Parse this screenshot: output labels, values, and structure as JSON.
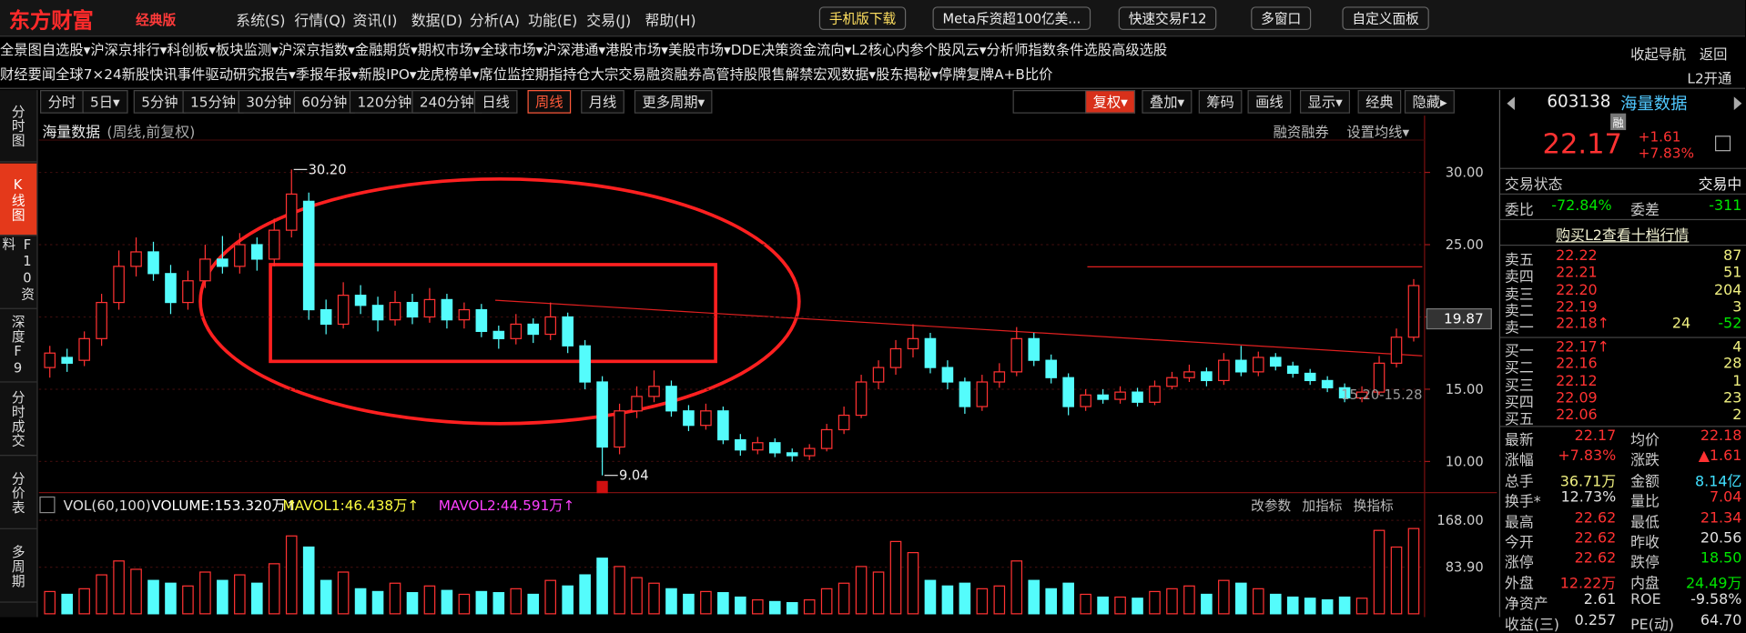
{
  "titlebar": {
    "logo": "东方财富",
    "edition": "经典版",
    "menu": [
      "系统(S)",
      "行情(Q)",
      "资讯(I)",
      "数据(D)",
      "分析(A)",
      "功能(E)",
      "交易(J)",
      "帮助(H)"
    ],
    "buttons": [
      "手机版下载",
      "Meta斥资超100亿美...",
      "快速交易F12",
      "多窗口",
      "自定义面板"
    ]
  },
  "nav": {
    "row1": [
      "全景图",
      "自选股▾",
      "沪深京排行▾",
      "科创板▾",
      "板块监测▾",
      "沪深京指数▾",
      "金融期货▾",
      "期权市场▾",
      "全球市场▾",
      "沪深港通▾",
      "港股市场▾",
      "美股市场▾",
      "DDE决策",
      "资金流向▾",
      "L2核心内参",
      "个股风云▾",
      "分析师指数",
      "条件选股",
      "高级选股"
    ],
    "row1_right": [
      "收起导航",
      "返回"
    ],
    "row2": [
      "财经要闻",
      "全球7×24",
      "新股快讯",
      "事件驱动",
      "研究报告▾",
      "季报年报▾",
      "新股IPO▾",
      "龙虎榜单▾",
      "席位监控",
      "期指持仓",
      "大宗交易",
      "融资融券",
      "高管持股",
      "限售解禁",
      "宏观数据▾",
      "股东揭秘▾",
      "停牌复牌",
      "A+B比价"
    ],
    "row2_right": "L2开通"
  },
  "sidebar": {
    "items": [
      "分时图",
      "K线图",
      "F10资料",
      "深度F9",
      "分时成交",
      "分价表",
      "多周期"
    ],
    "active": 1
  },
  "toolbar": {
    "periods": [
      "分时",
      "5日▾",
      "5分钟",
      "15分钟",
      "30分钟",
      "60分钟",
      "120分钟",
      "240分钟",
      "日线",
      "周线",
      "月线",
      "更多周期▾"
    ],
    "active": 9,
    "tools": [
      "复权▾",
      "叠加▾",
      "筹码",
      "画线",
      "显示▾",
      "经典",
      "隐藏▸"
    ]
  },
  "chart_data": {
    "type": "candlestick",
    "title": "海量数据",
    "subtitle": "(周线,前复权)",
    "links": [
      "融资融券",
      "设置均线▾"
    ],
    "up_color": "#ff3232",
    "down_color": "#54fcfc",
    "ohlc": [
      [
        16.5,
        18.0,
        15.8,
        17.5
      ],
      [
        17.2,
        17.8,
        16.2,
        16.8
      ],
      [
        17.0,
        19.0,
        16.6,
        18.5
      ],
      [
        18.5,
        21.6,
        18.0,
        21.0
      ],
      [
        21.0,
        24.6,
        20.5,
        23.5
      ],
      [
        23.5,
        25.5,
        22.8,
        24.5
      ],
      [
        24.5,
        25.2,
        22.5,
        23.0
      ],
      [
        23.0,
        23.6,
        20.2,
        21.0
      ],
      [
        21.0,
        23.2,
        20.5,
        22.5
      ],
      [
        22.5,
        25.0,
        22.0,
        24.0
      ],
      [
        24.0,
        25.6,
        23.0,
        23.5
      ],
      [
        23.5,
        25.8,
        23.0,
        25.0
      ],
      [
        25.0,
        25.5,
        23.2,
        24.0
      ],
      [
        24.0,
        26.8,
        23.5,
        26.0
      ],
      [
        26.0,
        30.2,
        25.5,
        28.5
      ],
      [
        28.0,
        28.6,
        19.8,
        20.5
      ],
      [
        20.5,
        21.2,
        18.8,
        19.5
      ],
      [
        19.5,
        22.4,
        19.2,
        21.5
      ],
      [
        21.5,
        22.2,
        20.2,
        20.8
      ],
      [
        20.8,
        21.4,
        19.0,
        19.8
      ],
      [
        19.8,
        21.8,
        19.4,
        21.0
      ],
      [
        21.0,
        21.6,
        19.5,
        20.0
      ],
      [
        20.0,
        22.0,
        19.6,
        21.2
      ],
      [
        21.2,
        21.6,
        19.2,
        19.8
      ],
      [
        19.8,
        21.0,
        19.2,
        20.5
      ],
      [
        20.5,
        20.9,
        18.6,
        19.0
      ],
      [
        19.0,
        19.4,
        17.8,
        18.5
      ],
      [
        18.5,
        20.2,
        18.1,
        19.5
      ],
      [
        19.5,
        19.9,
        18.2,
        18.8
      ],
      [
        18.8,
        21.0,
        18.4,
        20.0
      ],
      [
        20.0,
        20.3,
        17.5,
        18.0
      ],
      [
        18.0,
        18.4,
        15.0,
        15.5
      ],
      [
        15.5,
        15.9,
        9.04,
        11.0
      ],
      [
        11.0,
        14.0,
        10.5,
        13.5
      ],
      [
        13.5,
        15.2,
        13.0,
        14.5
      ],
      [
        14.5,
        16.3,
        14.1,
        15.2
      ],
      [
        15.2,
        15.6,
        13.1,
        13.5
      ],
      [
        13.5,
        13.9,
        12.1,
        12.5
      ],
      [
        12.5,
        14.0,
        12.2,
        13.5
      ],
      [
        13.5,
        13.8,
        11.2,
        11.5
      ],
      [
        11.5,
        11.9,
        10.4,
        10.8
      ],
      [
        10.8,
        11.7,
        10.5,
        11.3
      ],
      [
        11.3,
        11.6,
        10.3,
        10.6
      ],
      [
        10.6,
        10.9,
        10.0,
        10.4
      ],
      [
        10.4,
        11.2,
        10.1,
        10.9
      ],
      [
        10.9,
        12.6,
        10.7,
        12.2
      ],
      [
        12.2,
        13.8,
        11.9,
        13.2
      ],
      [
        13.2,
        16.0,
        13.0,
        15.5
      ],
      [
        15.5,
        17.0,
        15.0,
        16.5
      ],
      [
        16.5,
        18.4,
        16.0,
        17.8
      ],
      [
        17.8,
        19.5,
        17.2,
        18.5
      ],
      [
        18.5,
        18.9,
        16.1,
        16.5
      ],
      [
        16.5,
        17.0,
        15.0,
        15.5
      ],
      [
        15.5,
        15.8,
        13.3,
        13.8
      ],
      [
        13.8,
        16.0,
        13.5,
        15.5
      ],
      [
        15.5,
        16.8,
        15.1,
        16.2
      ],
      [
        16.2,
        19.3,
        15.9,
        18.5
      ],
      [
        18.5,
        18.9,
        16.6,
        17.0
      ],
      [
        17.0,
        17.4,
        15.4,
        15.8
      ],
      [
        15.8,
        16.1,
        13.2,
        13.8
      ],
      [
        13.8,
        15.0,
        13.5,
        14.6
      ],
      [
        14.6,
        15.0,
        14.0,
        14.3
      ],
      [
        14.3,
        15.2,
        14.0,
        14.8
      ],
      [
        14.8,
        15.1,
        13.8,
        14.1
      ],
      [
        14.1,
        15.6,
        13.9,
        15.2
      ],
      [
        15.2,
        16.2,
        15.0,
        15.8
      ],
      [
        15.8,
        16.7,
        15.5,
        16.2
      ],
      [
        16.2,
        16.5,
        15.2,
        15.6
      ],
      [
        15.6,
        17.5,
        15.3,
        17.0
      ],
      [
        17.0,
        18.0,
        15.9,
        16.2
      ],
      [
        16.2,
        17.6,
        15.9,
        17.2
      ],
      [
        17.2,
        17.5,
        16.3,
        16.6
      ],
      [
        16.6,
        16.9,
        15.8,
        16.1
      ],
      [
        16.1,
        16.4,
        15.3,
        15.6
      ],
      [
        15.6,
        15.9,
        14.8,
        15.1
      ],
      [
        15.1,
        15.4,
        14.1,
        14.4
      ],
      [
        14.4,
        15.2,
        14.1,
        14.8
      ],
      [
        14.8,
        17.3,
        14.6,
        16.8
      ],
      [
        16.8,
        19.2,
        16.5,
        18.6
      ],
      [
        18.6,
        22.62,
        18.3,
        22.17
      ]
    ],
    "ylim": [
      8.08,
      32.08
    ],
    "yticks": [
      {
        "value": 30,
        "label": "30.00"
      },
      {
        "value": 25,
        "label": "25.00"
      },
      {
        "value": 20,
        "label": "20.00"
      },
      {
        "value": 15,
        "label": "15.00"
      },
      {
        "value": 10,
        "label": "10.00"
      }
    ],
    "max_label": {
      "value": 30.2,
      "label": "30.20"
    },
    "min_label": {
      "value": 9.04,
      "label": "9.04"
    },
    "range_label": "15.20-15.28",
    "axis_marker": {
      "value": 19.87,
      "label": "19.87"
    },
    "volume": {
      "header": [
        "VOL(60,100)",
        "VOLUME:153.320万↑",
        "MAVOL1:46.438万↑",
        "MAVOL2:44.591万↑"
      ],
      "links": [
        "改参数",
        "加指标",
        "换指标"
      ],
      "values": [
        40,
        35,
        45,
        70,
        95,
        80,
        60,
        55,
        50,
        75,
        60,
        70,
        55,
        90,
        140,
        120,
        60,
        75,
        45,
        40,
        55,
        38,
        50,
        42,
        35,
        40,
        38,
        45,
        35,
        60,
        50,
        70,
        100,
        85,
        65,
        55,
        45,
        35,
        40,
        38,
        30,
        25,
        22,
        20,
        25,
        45,
        55,
        85,
        75,
        130,
        110,
        60,
        50,
        55,
        45,
        50,
        95,
        60,
        45,
        55,
        35,
        30,
        30,
        28,
        40,
        45,
        50,
        35,
        60,
        55,
        45,
        35,
        30,
        28,
        25,
        30,
        28,
        150,
        120,
        153.32
      ],
      "ylim": [
        0,
        172
      ],
      "yticks": [
        {
          "value": 168,
          "label": "168.00"
        },
        {
          "value": 83.9,
          "label": "83.90"
        }
      ]
    }
  },
  "quote": {
    "code": "603138",
    "name": "海量数据",
    "badge": "融",
    "price": "22.17",
    "change": "+1.61",
    "pct": "+7.83%",
    "status": [
      "交易状态",
      "交易中"
    ],
    "ratio": [
      "委比",
      "-72.84%",
      "委差",
      "-311"
    ],
    "l2_link": "购买L2查看十档行情",
    "asks": [
      [
        "卖五",
        "22.22",
        "87"
      ],
      [
        "卖四",
        "22.21",
        "51"
      ],
      [
        "卖三",
        "22.20",
        "204"
      ],
      [
        "卖二",
        "22.19",
        "3"
      ],
      [
        "卖一",
        "22.18↑",
        "24",
        "-52"
      ]
    ],
    "bids": [
      [
        "买一",
        "22.17↑",
        "4"
      ],
      [
        "买二",
        "22.16",
        "28"
      ],
      [
        "买三",
        "22.12",
        "1"
      ],
      [
        "买四",
        "22.09",
        "23"
      ],
      [
        "买五",
        "22.06",
        "2"
      ]
    ],
    "stats": [
      [
        "最新",
        "22.17",
        "均价",
        "22.18"
      ],
      [
        "涨幅",
        "+7.83%",
        "涨跌",
        "▲1.61"
      ],
      [
        "总手",
        "36.71万",
        "金额",
        "8.14亿"
      ],
      [
        "换手*",
        "12.73%",
        "量比",
        "7.04"
      ],
      [
        "最高",
        "22.62",
        "最低",
        "21.34"
      ],
      [
        "今开",
        "22.62",
        "昨收",
        "20.56"
      ],
      [
        "涨停",
        "22.62",
        "跌停",
        "18.50"
      ],
      [
        "外盘",
        "12.22万",
        "内盘",
        "24.49万"
      ],
      [
        "净资产",
        "2.61",
        "ROE",
        "-9.58%"
      ],
      [
        "收益(三)",
        "0.257",
        "PE(动)",
        "64.70"
      ]
    ],
    "stat_colors": [
      [
        "r",
        "r"
      ],
      [
        "r",
        "r"
      ],
      [
        "y",
        "c"
      ],
      [
        "w",
        "r"
      ],
      [
        "r",
        "r"
      ],
      [
        "r",
        "w"
      ],
      [
        "r",
        "g"
      ],
      [
        "r",
        "g"
      ],
      [
        "w",
        "w"
      ],
      [
        "w",
        "w"
      ]
    ]
  }
}
